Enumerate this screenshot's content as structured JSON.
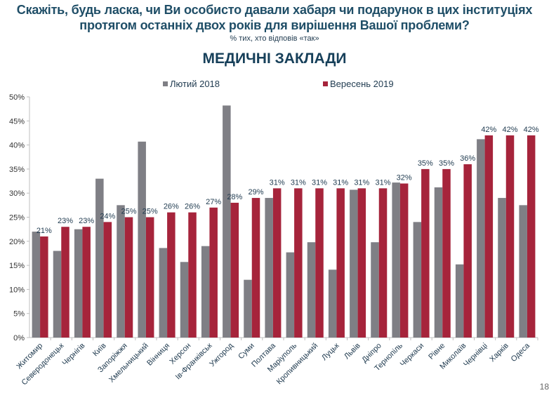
{
  "header": {
    "title_line1": "Скажіть, будь ласка, чи Ви особисто давали хабаря чи подарунок в цих інституціях",
    "title_line2": "протягом останніх двох років для вирішення Вашої проблеми?",
    "subtitle": "% тих, хто відповів «так»",
    "section": "МЕДИЧНІ ЗАКЛАДИ"
  },
  "page_number": "18",
  "chart_data": {
    "type": "bar",
    "title": "МЕДИЧНІ ЗАКЛАДИ",
    "ylim": [
      0,
      50
    ],
    "yticks": [
      "0%",
      "5%",
      "10%",
      "15%",
      "20%",
      "25%",
      "30%",
      "35%",
      "40%",
      "45%",
      "50%"
    ],
    "legend_position": "top",
    "grid": false,
    "categories": [
      "Житомир",
      "Северодонецьк",
      "Чернігів",
      "Київ",
      "Запоріжжя",
      "Хмельницький",
      "Вінниця",
      "Херсон",
      "Ів-Франківськ",
      "Ужгород",
      "Суми",
      "Полтава",
      "Маріуполь",
      "Кропивницький",
      "Луцьк",
      "Львів",
      "Дніпро",
      "Тернопіль",
      "Черкаси",
      "Рівне",
      "Миколаїв",
      "Чернівці",
      "Харків",
      "Одеса"
    ],
    "series": [
      {
        "name": "Лютий 2018",
        "color": "#7f7f85",
        "values": [
          22,
          18,
          22.5,
          33,
          27.5,
          40.7,
          18.6,
          15.7,
          19,
          48.2,
          12,
          29,
          17.7,
          19.8,
          14.1,
          30.7,
          19.8,
          32.2,
          24,
          31.2,
          15.2,
          41.2,
          29,
          27.5
        ]
      },
      {
        "name": "Вересень 2019",
        "color": "#a6243b",
        "values": [
          21,
          23,
          23,
          24,
          25,
          25,
          26,
          26,
          27,
          28,
          29,
          31,
          31,
          31,
          31,
          31,
          31,
          32,
          35,
          35,
          36,
          42,
          42,
          42
        ],
        "labels": [
          "21%",
          "23%",
          "23%",
          "24%",
          "25%",
          "25%",
          "26%",
          "26%",
          "27%",
          "28%",
          "29%",
          "31%",
          "31%",
          "31%",
          "31%",
          "31%",
          "31%",
          "32%",
          "35%",
          "35%",
          "36%",
          "42%",
          "42%",
          "42%"
        ]
      }
    ]
  }
}
